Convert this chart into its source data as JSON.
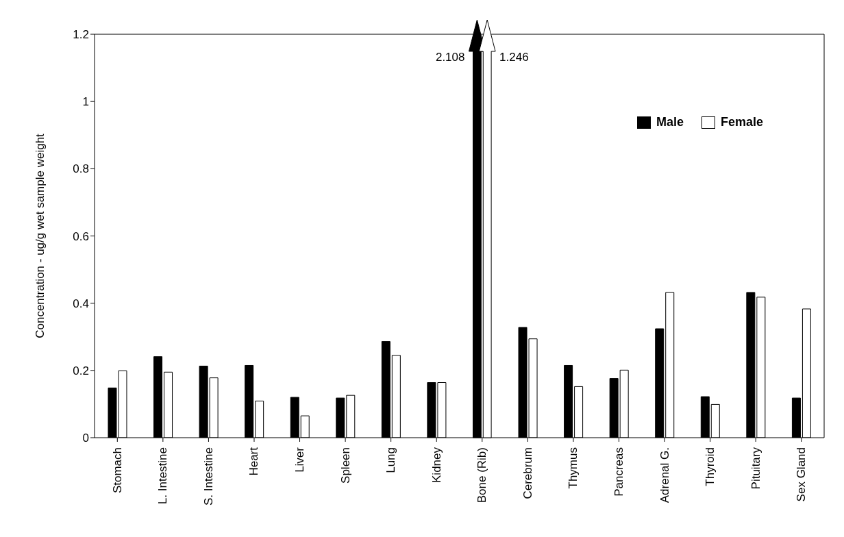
{
  "chart_data": {
    "type": "bar",
    "ylabel": "Concentration - ug/g wet sample weight",
    "categories": [
      "Stomach",
      "L. Intestine",
      "S. Intestine",
      "Heart",
      "Liver",
      "Spleen",
      "Lung",
      "Kidney",
      "Bone (Rib)",
      "Cerebrum",
      "Thymus",
      "Pancreas",
      "Adrenal G.",
      "Thyroid",
      "Pituitary",
      "Sex Gland"
    ],
    "series": [
      {
        "name": "Male",
        "color": "#000000",
        "values": [
          0.148,
          0.241,
          0.213,
          0.215,
          0.12,
          0.118,
          0.286,
          0.164,
          null,
          0.328,
          0.215,
          0.176,
          0.324,
          0.122,
          0.432,
          0.118
        ]
      },
      {
        "name": "Female",
        "color": "#ffffff",
        "values": [
          0.199,
          0.195,
          0.178,
          0.109,
          0.065,
          0.126,
          0.245,
          0.164,
          null,
          0.294,
          0.152,
          0.201,
          0.432,
          0.099,
          0.418,
          0.383
        ]
      }
    ],
    "annotations": [
      "2.108",
      "1.246"
    ],
    "ylim": [
      0,
      1.2
    ],
    "yticks": [
      0,
      0.2,
      0.4,
      0.6,
      0.8,
      1,
      1.2
    ],
    "legend": "top right"
  }
}
